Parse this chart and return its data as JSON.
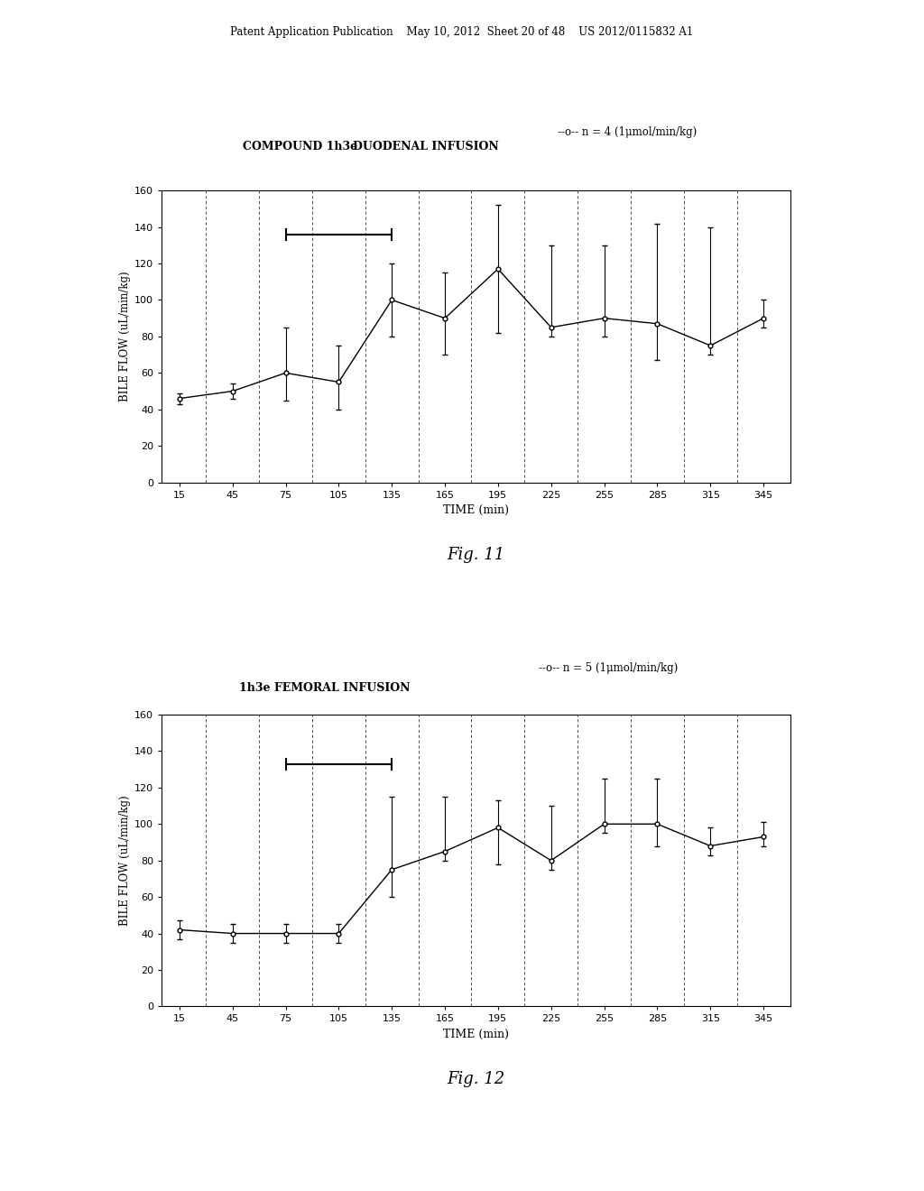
{
  "fig11": {
    "legend": "--o-- n = 4 (1μmol/min/kg)",
    "xlabel": "TIME (min)",
    "ylabel": "BILE FLOW (uL/min/kg)",
    "fignum": "Fig. 11",
    "x": [
      15,
      45,
      75,
      105,
      135,
      165,
      195,
      225,
      255,
      285,
      315,
      345
    ],
    "y_vals": [
      46,
      50,
      60,
      55,
      100,
      90,
      117,
      85,
      90,
      87,
      75,
      90
    ],
    "yerr_lo": [
      3,
      4,
      15,
      15,
      20,
      20,
      35,
      5,
      10,
      20,
      5,
      5
    ],
    "yerr_hi": [
      3,
      4,
      25,
      20,
      20,
      25,
      35,
      45,
      40,
      55,
      65,
      10
    ],
    "bracket_x1": 75,
    "bracket_x2": 135,
    "bracket_y": 136,
    "title_text1": "COMPOUND 1h3e",
    "title_text2": "DUODENAL INFUSION",
    "dashed_lines_x": [
      30,
      60,
      90,
      120,
      150,
      180,
      210,
      240,
      270,
      300,
      330
    ],
    "ylim": [
      0,
      160
    ],
    "yticks": [
      0,
      20,
      40,
      60,
      80,
      100,
      120,
      140,
      160
    ],
    "xticks": [
      15,
      45,
      75,
      105,
      135,
      165,
      195,
      225,
      255,
      285,
      315,
      345
    ],
    "xlim": [
      5,
      360
    ]
  },
  "fig12": {
    "legend": "--o-- n = 5 (1μmol/min/kg)",
    "xlabel": "TIME (min)",
    "ylabel": "BILE FLOW (uL/min/kg)",
    "fignum": "Fig. 12",
    "x": [
      15,
      45,
      75,
      105,
      135,
      165,
      195,
      225,
      255,
      285,
      315,
      345
    ],
    "y_plot": [
      42,
      40,
      40,
      40,
      75,
      85,
      98,
      80,
      100,
      100,
      88,
      93
    ],
    "yerr_lo": [
      5,
      5,
      5,
      5,
      15,
      5,
      20,
      5,
      5,
      12,
      5,
      5
    ],
    "yerr_hi": [
      5,
      5,
      5,
      5,
      40,
      30,
      15,
      30,
      25,
      25,
      10,
      8
    ],
    "bracket_x1": 75,
    "bracket_x2": 135,
    "bracket_y": 133,
    "title_text": "1h3e FEMORAL INFUSION",
    "dashed_lines_x": [
      30,
      60,
      90,
      120,
      150,
      180,
      210,
      240,
      270,
      300,
      330
    ],
    "ylim": [
      0,
      160
    ],
    "yticks": [
      0,
      20,
      40,
      60,
      80,
      100,
      120,
      140,
      160
    ],
    "xticks": [
      15,
      45,
      75,
      105,
      135,
      165,
      195,
      225,
      255,
      285,
      315,
      345
    ],
    "xlim": [
      5,
      360
    ]
  },
  "page_header": "Patent Application Publication    May 10, 2012  Sheet 20 of 48    US 2012/0115832 A1",
  "bg_color": "#ffffff",
  "line_color": "#000000"
}
